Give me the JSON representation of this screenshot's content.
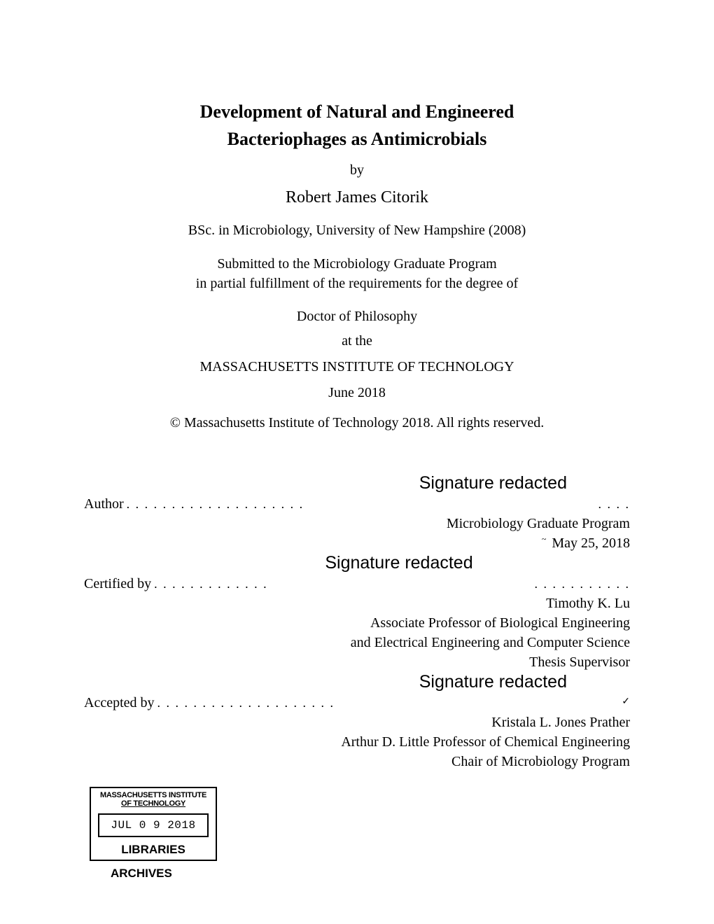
{
  "title": {
    "line1": "Development of Natural and Engineered",
    "line2": "Bacteriophages as Antimicrobials"
  },
  "by": "by",
  "author": "Robert James Citorik",
  "credential": "BSc. in Microbiology, University of New Hampshire (2008)",
  "submitted": {
    "line1": "Submitted to the Microbiology Graduate Program",
    "line2": "in partial fulfillment of the requirements for the degree of"
  },
  "degree": "Doctor of Philosophy",
  "at_the": "at the",
  "institution": "MASSACHUSETTS INSTITUTE OF TECHNOLOGY",
  "date": "June 2018",
  "copyright": "© Massachusetts Institute of Technology 2018. All rights reserved.",
  "signature_redacted": "Signature redacted",
  "author_sig": {
    "label": "Author",
    "dots": ". . . . . . . . . . . . . . . . . . . .",
    "end_dots": ". . . .",
    "dept": "Microbiology Graduate Program",
    "date": "May 25, 2018"
  },
  "certified_sig": {
    "label": "Certified by",
    "dots": ". . . . . . . . . . . . .",
    "end_dots": ". . . . . . . . . . .",
    "name": "Timothy K. Lu",
    "title1": "Associate Professor of Biological Engineering",
    "title2": "and Electrical Engineering and Computer Science",
    "role": "Thesis Supervisor"
  },
  "accepted_sig": {
    "label": "Accepted by",
    "dots": ". . . . . . . . . . . . . . . . . . . .",
    "check": "✓",
    "tilde": "~",
    "name": "Kristala L. Jones Prather",
    "title1": "Arthur D. Little Professor of Chemical Engineering",
    "title2": "Chair of Microbiology Program"
  },
  "stamp": {
    "header1": "MASSACHUSETTS INSTITUTE",
    "header2": "OF TECHNOLOGY",
    "date": "JUL 0 9 2018",
    "libraries": "LIBRARIES"
  },
  "archives": "ARCHIVES"
}
